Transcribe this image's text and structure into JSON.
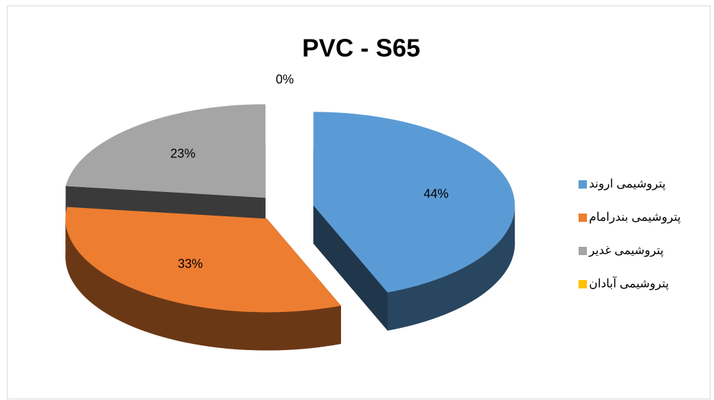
{
  "chart_data": {
    "type": "pie",
    "title": "PVC - S65",
    "categories": [
      "پتروشیمی اروند",
      "پتروشیمی بندرامام",
      "پتروشیمی غدیر",
      "پتروشیمی آبادان"
    ],
    "values": [
      44,
      33,
      23,
      0
    ],
    "value_labels": [
      "44%",
      "33%",
      "23%",
      "0%"
    ],
    "colors": [
      "#5b9bd5",
      "#ed7d31",
      "#a5a5a5",
      "#ffc000"
    ],
    "legend": "right"
  }
}
